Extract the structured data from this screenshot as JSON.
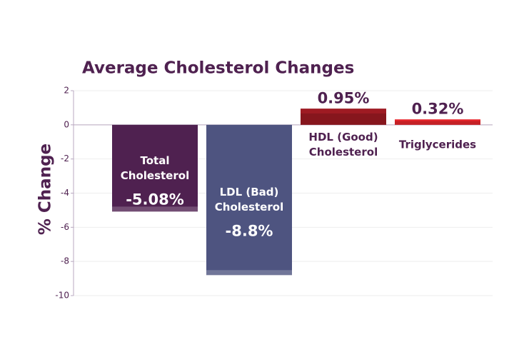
{
  "chart_data": {
    "type": "bar",
    "title": "Average Cholesterol Changes",
    "y_label": "% Change",
    "categories": [
      "Total Cholesterol",
      "LDL (Bad) Cholesterol",
      "HDL (Good) Cholesterol",
      "Triglycerides"
    ],
    "values": [
      -5.08,
      -8.8,
      0.95,
      0.32
    ],
    "value_labels": [
      "-5.08%",
      "-8.8%",
      "0.95%",
      "0.32%"
    ],
    "colors": [
      "#4f2150",
      "#4e5480",
      "#9e1b23",
      "#e8262c"
    ],
    "ylim": [
      -10,
      2
    ],
    "yticks": [
      -10,
      -8,
      -6,
      -4,
      -2,
      0,
      2
    ],
    "grid": true
  }
}
